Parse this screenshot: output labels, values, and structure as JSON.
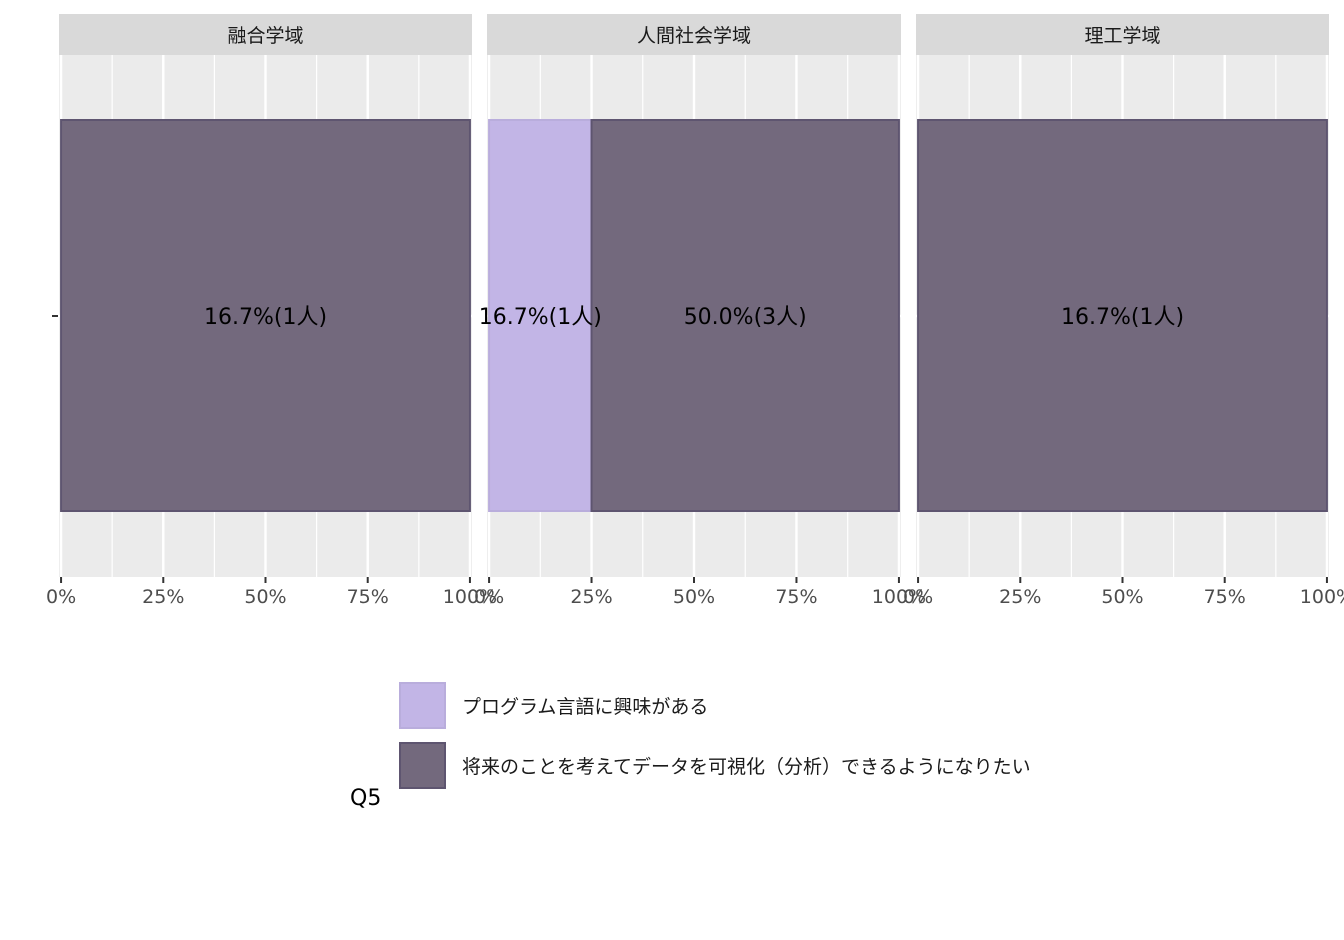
{
  "chart_data": {
    "type": "bar",
    "orientation": "horizontal",
    "stacked": true,
    "xlim": [
      0,
      1
    ],
    "ticks": [
      "0%",
      "25%",
      "50%",
      "75%",
      "100%"
    ],
    "tick_values": [
      0,
      0.25,
      0.5,
      0.75,
      1
    ],
    "grid": true,
    "legend": {
      "title": "Q5",
      "position": "bottom",
      "entries": [
        {
          "label": "プログラム言語に興味がある",
          "color": "#c2b5e6"
        },
        {
          "label": "将来のことを考えてデータを可視化（分析）できるようになりたい",
          "color": "#73697d"
        }
      ]
    },
    "facets": [
      {
        "label": "融合学域",
        "segments": [
          {
            "series": 1,
            "from": 0,
            "to": 1,
            "label": "16.7%(1人)"
          }
        ]
      },
      {
        "label": "人間社会学域",
        "segments": [
          {
            "series": 0,
            "from": 0,
            "to": 0.25,
            "label": "16.7%(1人)"
          },
          {
            "series": 1,
            "from": 0.25,
            "to": 1,
            "label": "50.0%(3人)"
          }
        ]
      },
      {
        "label": "理工学域",
        "segments": [
          {
            "series": 1,
            "from": 0,
            "to": 1,
            "label": "16.7%(1人)"
          }
        ]
      }
    ]
  }
}
